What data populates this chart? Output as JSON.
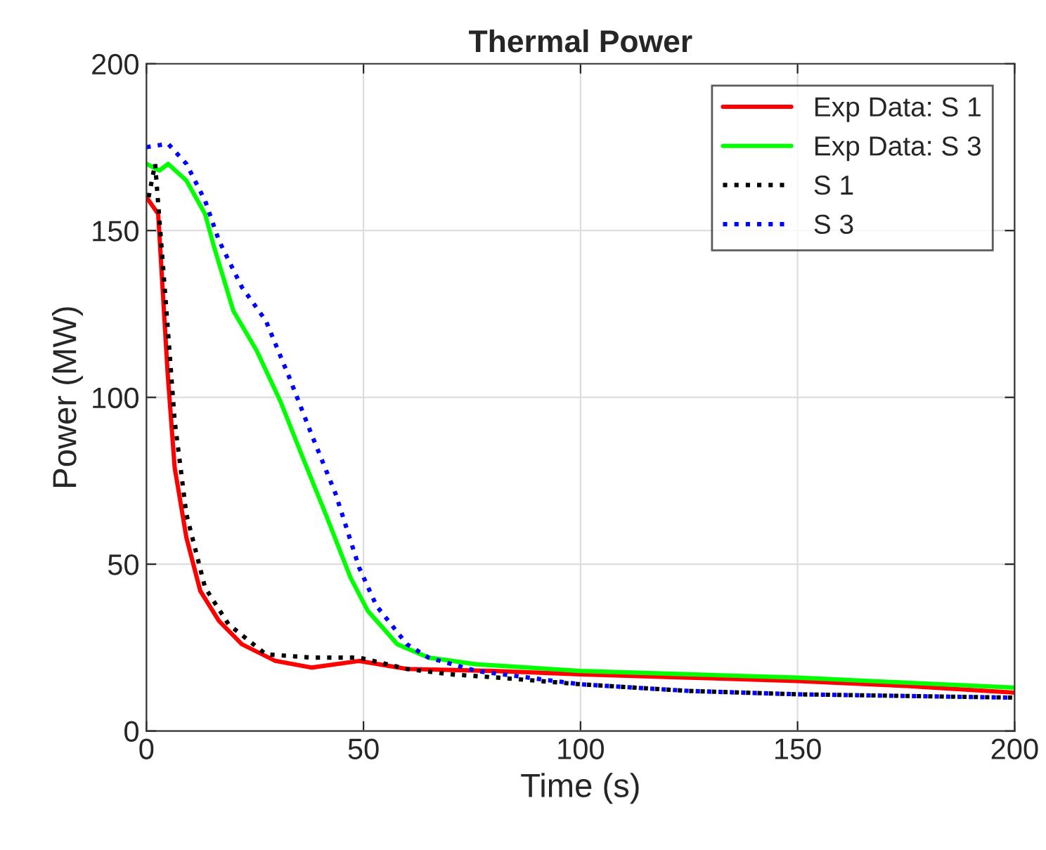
{
  "chart_data": {
    "type": "line",
    "title": "Thermal Power",
    "xlabel": "Time (s)",
    "ylabel": "Power (MW)",
    "xlim": [
      0,
      200
    ],
    "xticks": [
      0,
      50,
      100,
      150,
      200
    ],
    "ylim": [
      0,
      200
    ],
    "yticks": [
      0,
      50,
      100,
      150,
      200
    ],
    "grid": true,
    "legend": "top right",
    "series": [
      {
        "name": "Exp Data: S 1",
        "color": "#ff0000",
        "line_style": "solid",
        "x": [
          0,
          2.7,
          4.9,
          6.5,
          9.2,
          12.4,
          16.7,
          22,
          29.7,
          38,
          49,
          60,
          80,
          100,
          125,
          150,
          175,
          200
        ],
        "values": [
          160,
          155,
          107,
          79,
          58,
          42,
          33,
          26,
          21,
          19,
          21,
          18.6,
          18,
          17,
          16,
          15,
          13.5,
          11.5
        ]
      },
      {
        "name": "Exp Data: S 3",
        "color": "#00ff00",
        "line_style": "solid",
        "x": [
          0,
          3,
          5,
          9.2,
          13.5,
          15.6,
          20,
          25.4,
          30.8,
          36,
          41.6,
          47,
          51,
          57.8,
          65,
          76,
          100,
          125,
          150,
          175,
          200
        ],
        "values": [
          170,
          168,
          170,
          165,
          155,
          145,
          126,
          114,
          99,
          82,
          64,
          46,
          36,
          26,
          22,
          20,
          18,
          17,
          16,
          14.5,
          13
        ]
      },
      {
        "name": "S 1",
        "color": "#000000",
        "line_style": "dotted",
        "x": [
          0.5,
          2,
          4.9,
          6.5,
          9.2,
          13.5,
          18.9,
          27.5,
          38,
          49,
          60,
          70,
          81,
          100,
          125,
          150,
          175,
          200
        ],
        "values": [
          160,
          170,
          121,
          93,
          65,
          43,
          32,
          23,
          22,
          22,
          18.6,
          17,
          16,
          14,
          12,
          11,
          10.5,
          10
        ]
      },
      {
        "name": "S 3",
        "color": "#0000ff",
        "line_style": "dotted",
        "x": [
          0,
          5,
          9.2,
          13.5,
          16.7,
          22,
          27.5,
          32.9,
          38,
          43.6,
          49,
          53,
          60,
          65,
          76,
          100,
          125,
          150,
          175,
          200
        ],
        "values": [
          175,
          176,
          170,
          159,
          147,
          133,
          123,
          106,
          89,
          71,
          49,
          37.5,
          26,
          22,
          18,
          14,
          12,
          11,
          10.5,
          10
        ]
      }
    ]
  }
}
